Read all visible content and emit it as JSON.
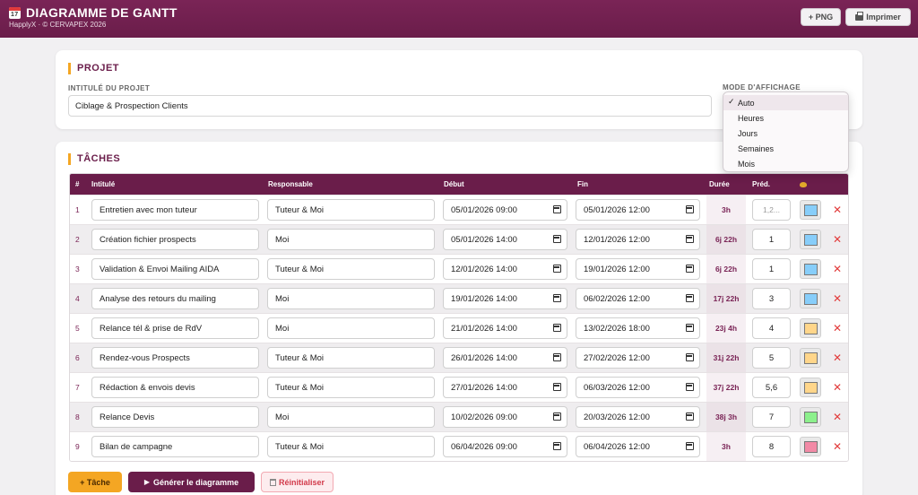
{
  "header": {
    "title": "DIAGRAMME DE GANTT",
    "subtitle": "HapplyX · © CERVAPEX 2026",
    "png_label": "+ PNG",
    "print_label": "Imprimer"
  },
  "project": {
    "section_title": "PROJET",
    "name_label": "INTITULÉ DU PROJET",
    "name_value": "Ciblage & Prospection Clients",
    "mode_label": "MODE D'AFFICHAGE",
    "mode_options": [
      "Auto",
      "Heures",
      "Jours",
      "Semaines",
      "Mois"
    ],
    "mode_selected": "Auto"
  },
  "tasks": {
    "section_title": "TÂCHES",
    "columns": {
      "num": "#",
      "intitule": "Intitulé",
      "responsable": "Responsable",
      "debut": "Début",
      "fin": "Fin",
      "duree": "Durée",
      "pred": "Préd."
    },
    "pred_placeholder": "1,2...",
    "rows": [
      {
        "num": "1",
        "intitule": "Entretien avec mon tuteur",
        "responsable": "Tuteur & Moi",
        "debut": "05/01/2026 09:00",
        "fin": "05/01/2026 12:00",
        "duree": "3h",
        "pred": "",
        "color": "#87cefa"
      },
      {
        "num": "2",
        "intitule": "Création fichier prospects",
        "responsable": "Moi",
        "debut": "05/01/2026 14:00",
        "fin": "12/01/2026 12:00",
        "duree": "6j 22h",
        "pred": "1",
        "color": "#87cefa"
      },
      {
        "num": "3",
        "intitule": "Validation & Envoi Mailing AIDA",
        "responsable": "Tuteur & Moi",
        "debut": "12/01/2026 14:00",
        "fin": "19/01/2026 12:00",
        "duree": "6j 22h",
        "pred": "1",
        "color": "#87cefa"
      },
      {
        "num": "4",
        "intitule": "Analyse des retours du mailing",
        "responsable": "Moi",
        "debut": "19/01/2026 14:00",
        "fin": "06/02/2026 12:00",
        "duree": "17j 22h",
        "pred": "3",
        "color": "#87cefa"
      },
      {
        "num": "5",
        "intitule": "Relance tél & prise de RdV",
        "responsable": "Moi",
        "debut": "21/01/2026 14:00",
        "fin": "13/02/2026 18:00",
        "duree": "23j 4h",
        "pred": "4",
        "color": "#ffd68a"
      },
      {
        "num": "6",
        "intitule": "Rendez-vous Prospects",
        "responsable": "Tuteur & Moi",
        "debut": "26/01/2026 14:00",
        "fin": "27/02/2026 12:00",
        "duree": "31j 22h",
        "pred": "5",
        "color": "#ffd68a"
      },
      {
        "num": "7",
        "intitule": "Rédaction & envois devis",
        "responsable": "Tuteur & Moi",
        "debut": "27/01/2026 14:00",
        "fin": "06/03/2026 12:00",
        "duree": "37j 22h",
        "pred": "5,6",
        "color": "#ffd68a"
      },
      {
        "num": "8",
        "intitule": "Relance Devis",
        "responsable": "Moi",
        "debut": "10/02/2026 09:00",
        "fin": "20/03/2026 12:00",
        "duree": "38j 3h",
        "pred": "7",
        "color": "#8cf08c"
      },
      {
        "num": "9",
        "intitule": "Bilan de campagne",
        "responsable": "Tuteur & Moi",
        "debut": "06/04/2026 09:00",
        "fin": "06/04/2026 12:00",
        "duree": "3h",
        "pred": "8",
        "color": "#f28aa6"
      }
    ]
  },
  "actions": {
    "add_task": "+ Tâche",
    "generate": "Générer le diagramme",
    "reset": "Réinitialiser"
  },
  "icons": {
    "app": "calendar-icon",
    "print": "printer-icon",
    "color_column": "palette-icon",
    "delete": "close-icon",
    "generate": "play-icon",
    "reset": "trash-icon"
  }
}
